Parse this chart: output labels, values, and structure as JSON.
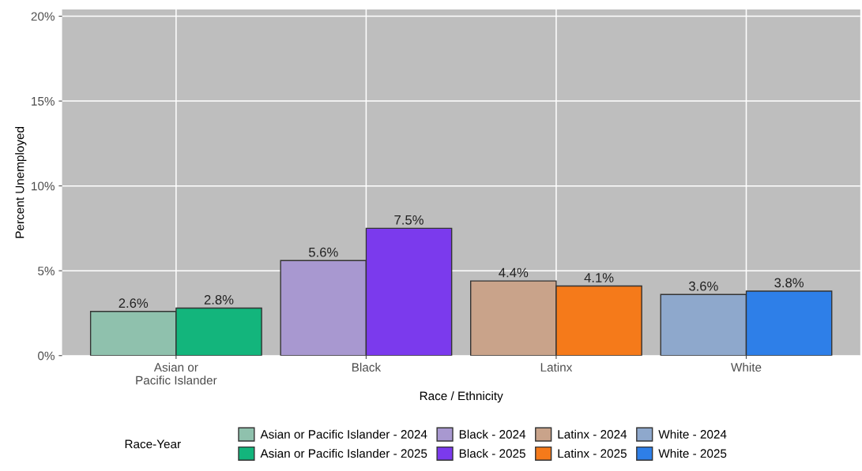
{
  "chart_data": {
    "type": "bar",
    "xlabel": "Race / Ethnicity",
    "ylabel": "Percent Unemployed",
    "legend_title": "Race-Year",
    "categories": [
      "Asian or\nPacific Islander",
      "Black",
      "Latinx",
      "White"
    ],
    "series": [
      {
        "name": "Asian or Pacific Islander - 2024",
        "color": "#8fc1ad",
        "values": [
          2.6,
          null,
          null,
          null
        ],
        "value_labels": [
          "2.6%",
          null,
          null,
          null
        ]
      },
      {
        "name": "Asian or Pacific Islander - 2025",
        "color": "#13b57c",
        "values": [
          2.8,
          null,
          null,
          null
        ],
        "value_labels": [
          "2.8%",
          null,
          null,
          null
        ]
      },
      {
        "name": "Black - 2024",
        "color": "#a898d0",
        "values": [
          null,
          5.6,
          null,
          null
        ],
        "value_labels": [
          null,
          "5.6%",
          null,
          null
        ]
      },
      {
        "name": "Black - 2025",
        "color": "#7b3aed",
        "values": [
          null,
          7.5,
          null,
          null
        ],
        "value_labels": [
          null,
          "7.5%",
          null,
          null
        ]
      },
      {
        "name": "Latinx - 2024",
        "color": "#c9a38a",
        "values": [
          null,
          null,
          4.4,
          null
        ],
        "value_labels": [
          null,
          null,
          "4.4%",
          null
        ]
      },
      {
        "name": "Latinx - 2025",
        "color": "#f57a1a",
        "values": [
          null,
          null,
          4.1,
          null
        ],
        "value_labels": [
          null,
          null,
          "4.1%",
          null
        ]
      },
      {
        "name": "White - 2024",
        "color": "#8ea8cc",
        "values": [
          null,
          null,
          null,
          3.6
        ],
        "value_labels": [
          null,
          null,
          null,
          "3.6%"
        ]
      },
      {
        "name": "White - 2025",
        "color": "#2e7fe8",
        "values": [
          null,
          null,
          null,
          3.8
        ],
        "value_labels": [
          null,
          null,
          null,
          "3.8%"
        ]
      }
    ],
    "ylim": [
      0,
      20.4
    ],
    "yticks": [
      {
        "value": 0,
        "label": "0%"
      },
      {
        "value": 5,
        "label": "5%"
      },
      {
        "value": 10,
        "label": "10%"
      },
      {
        "value": 15,
        "label": "15%"
      },
      {
        "value": 20,
        "label": "20%"
      }
    ],
    "grid": true,
    "legend": "bottom"
  }
}
